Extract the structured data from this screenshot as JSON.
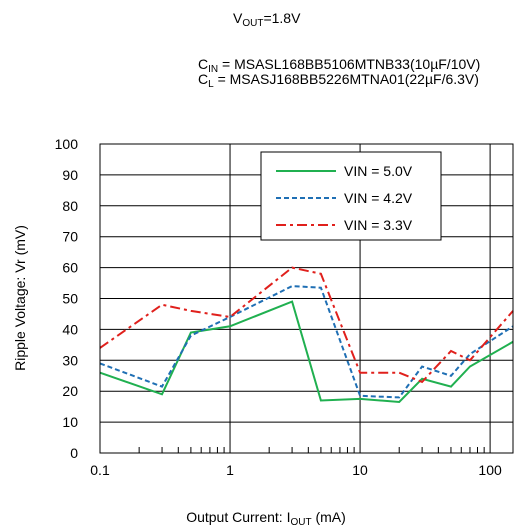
{
  "header": {
    "vout_main": "V",
    "vout_sub": "OUT",
    "vout_rest": "=1.8V",
    "cin_main": "C",
    "cin_sub": "IN",
    "cin_rest": " = MSASL168BB5106MTNB33(10µF/10V)",
    "cl_main": "C",
    "cl_sub": "L",
    "cl_rest": " = MSASJ168BB5226MTNA01(22µF/6.3V)"
  },
  "axes": {
    "xlabel_main": "Output Current: I",
    "xlabel_sub": "OUT",
    "xlabel_rest": " (mA)",
    "ylabel": "Ripple Voltage: Vr (mV)"
  },
  "chart_data": {
    "type": "line",
    "x_scale": "log",
    "xlim": [
      0.1,
      150
    ],
    "ylim": [
      0,
      100
    ],
    "x_ticks": [
      0.1,
      1,
      10,
      100
    ],
    "x_tick_labels": [
      "0.1",
      "1",
      "10",
      "100"
    ],
    "y_ticks": [
      0,
      10,
      20,
      30,
      40,
      50,
      60,
      70,
      80,
      90,
      100
    ],
    "y_tick_labels": [
      "0",
      "10",
      "20",
      "30",
      "40",
      "50",
      "60",
      "70",
      "80",
      "90",
      "100"
    ],
    "grid": true,
    "legend_position": "top-right",
    "series": [
      {
        "name": "VIN = 5.0V",
        "color": "#20b050",
        "dash": "solid",
        "x": [
          0.1,
          0.3,
          0.5,
          1,
          3,
          5,
          10,
          20,
          30,
          50,
          70,
          150
        ],
        "y": [
          26,
          19,
          39,
          41,
          49,
          17,
          17.5,
          16.5,
          24,
          21.5,
          28,
          36
        ]
      },
      {
        "name": "VIN = 4.2V",
        "color": "#1f6fb4",
        "dash": "dashed",
        "x": [
          0.1,
          0.3,
          0.5,
          1,
          3,
          5,
          10,
          20,
          30,
          50,
          70,
          150
        ],
        "y": [
          29,
          21.5,
          38,
          44,
          54,
          53.5,
          18.5,
          18,
          28,
          25,
          32,
          41
        ]
      },
      {
        "name": "VIN = 3.3V",
        "color": "#e0201c",
        "dash": "dashdot",
        "x": [
          0.1,
          0.3,
          0.5,
          1,
          3,
          5,
          10,
          20,
          30,
          50,
          70,
          150
        ],
        "y": [
          34,
          48,
          46,
          44,
          60,
          58,
          26,
          26,
          23,
          33,
          30,
          46
        ]
      }
    ]
  }
}
